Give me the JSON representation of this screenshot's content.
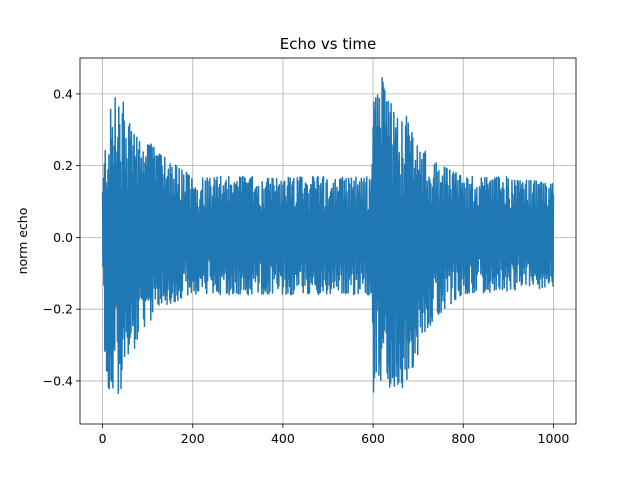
{
  "chart_data": {
    "type": "line",
    "title": "Echo vs time",
    "xlabel": "",
    "ylabel": "norm echo",
    "xlim": [
      -50,
      1050
    ],
    "ylim": [
      -0.52,
      0.5
    ],
    "xticks": [
      0,
      200,
      400,
      600,
      800,
      1000
    ],
    "xtick_labels": [
      "0",
      "200",
      "400",
      "600",
      "800",
      "1000"
    ],
    "yticks": [
      -0.4,
      -0.2,
      0.0,
      0.2,
      0.4
    ],
    "ytick_labels": [
      "−0.4",
      "−0.2",
      "0.0",
      "0.2",
      "0.4"
    ],
    "grid": true,
    "series": [
      {
        "color": "#1f77b4",
        "x_range": [
          0,
          1000
        ],
        "envelope_x": [
          0,
          5,
          15,
          25,
          35,
          50,
          65,
          85,
          110,
          140,
          200,
          300,
          400,
          500,
          595,
          600,
          610,
          620,
          630,
          645,
          660,
          675,
          690,
          710,
          740,
          800,
          900,
          1000
        ],
        "envelope_upper": [
          0.14,
          0.26,
          0.34,
          0.41,
          0.37,
          0.38,
          0.3,
          0.27,
          0.26,
          0.22,
          0.17,
          0.17,
          0.17,
          0.17,
          0.17,
          0.37,
          0.42,
          0.45,
          0.39,
          0.37,
          0.33,
          0.34,
          0.3,
          0.25,
          0.21,
          0.17,
          0.17,
          0.15
        ],
        "envelope_lower": [
          -0.04,
          -0.35,
          -0.45,
          -0.42,
          -0.46,
          -0.4,
          -0.33,
          -0.27,
          -0.23,
          -0.19,
          -0.16,
          -0.16,
          -0.16,
          -0.16,
          -0.16,
          -0.44,
          -0.37,
          -0.42,
          -0.38,
          -0.46,
          -0.44,
          -0.4,
          -0.37,
          -0.28,
          -0.22,
          -0.16,
          -0.15,
          -0.14
        ]
      }
    ]
  }
}
